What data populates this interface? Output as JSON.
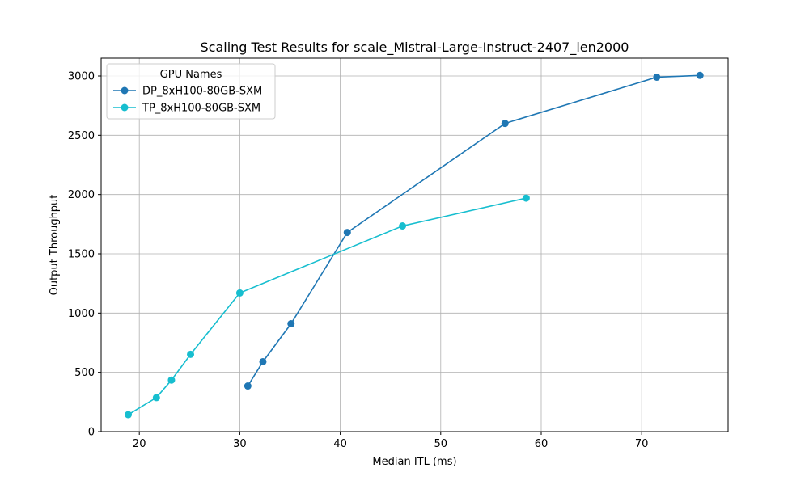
{
  "chart_data": {
    "type": "line",
    "title": "Scaling Test Results for scale_Mistral-Large-Instruct-2407_len2000",
    "xlabel": "Median ITL (ms)",
    "ylabel": "Output Throughput",
    "xlim": [
      16.2,
      78.6
    ],
    "ylim": [
      0,
      3150
    ],
    "xticks": [
      20,
      30,
      40,
      50,
      60,
      70
    ],
    "yticks": [
      0,
      500,
      1000,
      1500,
      2000,
      2500,
      3000
    ],
    "grid": true,
    "legend": {
      "title": "GPU Names",
      "placement": "top-left"
    },
    "series": [
      {
        "name": "DP_8xH100-80GB-SXM",
        "color": "#1f77b4",
        "x": [
          30.8,
          32.3,
          35.1,
          40.7,
          56.4,
          71.5,
          75.8
        ],
        "y": [
          385,
          590,
          910,
          1680,
          2600,
          2990,
          3005
        ]
      },
      {
        "name": "TP_8xH100-80GB-SXM",
        "color": "#17becf",
        "x": [
          18.9,
          21.7,
          23.2,
          25.1,
          30.0,
          46.2,
          58.5
        ],
        "y": [
          143,
          287,
          435,
          652,
          1170,
          1735,
          1970
        ]
      }
    ]
  }
}
